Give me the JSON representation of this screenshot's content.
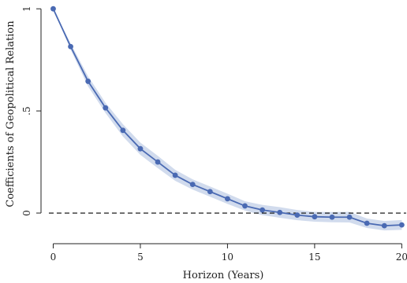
{
  "chart_data": {
    "type": "line",
    "title": "",
    "xlabel": "Horizon (Years)",
    "ylabel": "Coefficients of Geopolitical Relation",
    "xlim": [
      -0.7,
      20.3
    ],
    "ylim": [
      -0.15,
      1.02
    ],
    "x_ticks": [
      0,
      5,
      10,
      15,
      20
    ],
    "x_tick_labels": [
      "0",
      "5",
      "10",
      "15",
      "20"
    ],
    "y_ticks": [
      0,
      0.5,
      1
    ],
    "y_tick_labels": [
      "0",
      ".5",
      "1"
    ],
    "grid": false,
    "legend": "none",
    "reference_line": {
      "y": 0,
      "style": "dashed"
    },
    "series": [
      {
        "x": [
          0,
          1,
          2,
          3,
          4,
          5,
          6,
          7,
          8,
          9,
          10,
          11,
          12,
          13,
          14,
          15,
          16,
          17,
          18,
          19,
          20
        ],
        "values": [
          1.0,
          0.815,
          0.645,
          0.515,
          0.405,
          0.315,
          0.25,
          0.185,
          0.14,
          0.105,
          0.07,
          0.035,
          0.015,
          0.003,
          -0.01,
          -0.018,
          -0.02,
          -0.02,
          -0.05,
          -0.062,
          -0.058
        ],
        "ci_lower": [
          1.0,
          0.8,
          0.62,
          0.49,
          0.375,
          0.285,
          0.22,
          0.158,
          0.115,
          0.08,
          0.045,
          0.012,
          -0.01,
          -0.023,
          -0.035,
          -0.042,
          -0.045,
          -0.046,
          -0.073,
          -0.085,
          -0.082
        ],
        "ci_upper": [
          1.0,
          0.83,
          0.67,
          0.54,
          0.435,
          0.345,
          0.28,
          0.212,
          0.165,
          0.13,
          0.095,
          0.058,
          0.04,
          0.029,
          0.015,
          0.006,
          0.005,
          0.006,
          -0.027,
          -0.039,
          -0.034
        ]
      }
    ],
    "colors": {
      "line": "#4a6ab3",
      "band": "#c9d5ea",
      "axis": "#222222",
      "reference": "#000000"
    }
  }
}
